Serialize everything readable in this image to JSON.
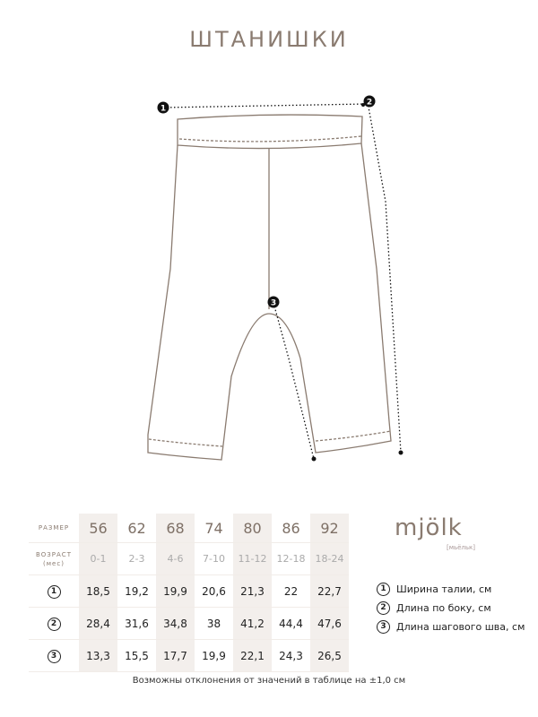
{
  "title": "ШТАНИШКИ",
  "table": {
    "size_label": "РАЗМЕР",
    "age_label": "ВОЗРАСТ (мес)",
    "sizes": [
      "56",
      "62",
      "68",
      "74",
      "80",
      "86",
      "92"
    ],
    "ages": [
      "0-1",
      "2-3",
      "4-6",
      "7-10",
      "11-12",
      "12-18",
      "18-24"
    ],
    "rows": [
      {
        "marker": "1",
        "values": [
          "18,5",
          "19,2",
          "19,9",
          "20,6",
          "21,3",
          "22",
          "22,7"
        ]
      },
      {
        "marker": "2",
        "values": [
          "28,4",
          "31,6",
          "34,8",
          "38",
          "41,2",
          "44,4",
          "47,6"
        ]
      },
      {
        "marker": "3",
        "values": [
          "13,3",
          "15,5",
          "17,7",
          "19,9",
          "22,1",
          "24,3",
          "26,5"
        ]
      }
    ]
  },
  "logo": {
    "name": "mjölk",
    "sub": "[мьёльк]"
  },
  "legend": [
    {
      "marker": "1",
      "label": "Ширина талии, см"
    },
    {
      "marker": "2",
      "label": "Длина по боку, см"
    },
    {
      "marker": "3",
      "label": "Длина шагового шва, см"
    }
  ],
  "note": "Возможны отклонения от значений в таблице на ±1,0 см",
  "colors": {
    "accent": "#8a7b70",
    "shade": "#f3efec"
  }
}
